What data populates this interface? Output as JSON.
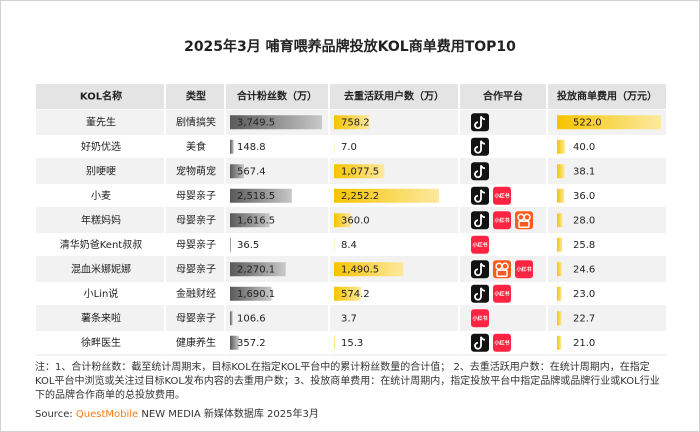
{
  "title": "2025年3月 哺育喂养品牌投放KOL商单费用TOP10",
  "table": {
    "header": [
      "KOL名称",
      "类型",
      "合计粉丝数（万）",
      "去重活跃用户数（万）",
      "合作平台",
      "投放商单费用（万元）"
    ],
    "rows": [
      [
        "董先生",
        "剧情搞笑",
        {
          "value": 3749.5,
          "label": "3,749.5"
        },
        758.2,
        {
          "value": 522,
          "label": "522.0"
        }
      ],
      [
        "好奶优选",
        "美食",
        148.8,
        {
          "value": 7,
          "label": "7.0"
        },
        {
          "value": 40,
          "label": "40.0"
        }
      ],
      [
        "别哽哽",
        "宠物萌宠",
        567.4,
        {
          "value": 1077.5,
          "label": "1,077.5"
        },
        38.1
      ],
      [
        "小麦",
        "母婴亲子",
        {
          "value": 2518.5,
          "label": "2,518.5"
        },
        {
          "value": 2252.2,
          "label": "2,252.2"
        },
        {
          "value": 36,
          "label": "36.0"
        }
      ],
      [
        "年糕妈妈",
        "母婴亲子",
        {
          "value": 1616.5,
          "label": "1,616.5"
        },
        {
          "value": 360,
          "label": "360.0"
        },
        {
          "value": 28,
          "label": "28.0"
        }
      ],
      [
        "清华奶爸Kent叔叔",
        "母婴亲子",
        36.5,
        8.4,
        25.8
      ],
      [
        "混血米娜妮娜",
        "母婴亲子",
        {
          "value": 2270.1,
          "label": "2,270.1"
        },
        {
          "value": 1490.5,
          "label": "1,490.5"
        },
        24.6
      ],
      [
        "小Lin说",
        "金融财经",
        {
          "value": 1690.1,
          "label": "1,690.1"
        },
        574.2,
        {
          "value": 23,
          "label": "23.0"
        }
      ],
      [
        "薯条来啦",
        "母婴亲子",
        106.6,
        3.7,
        22.7
      ],
      [
        "徐畔医生",
        "健康养生",
        357.2,
        15.3,
        {
          "value": 21,
          "label": "21.0"
        }
      ]
    ]
  },
  "platform_icon_text": "小红书",
  "notes": "注：1、合计粉丝数：截至统计周期末，目标KOL在指定KOL平台中的累计粉丝数量的合计值； 2、去重活跃用户数：在统计周期内，在指定KOL平台中浏览或关注过目标KOL发布内容的去重用户数；3、投放商单费用：在统计周期内，指定投放平台中指定品牌或品牌行业或KOL行业下的品牌合作商单的总投放费用。",
  "source": {
    "label": "Source:",
    "brand": "QuestMobile",
    "rest": "NEW MEDIA 新媒体数据库 2025年3月"
  }
}
